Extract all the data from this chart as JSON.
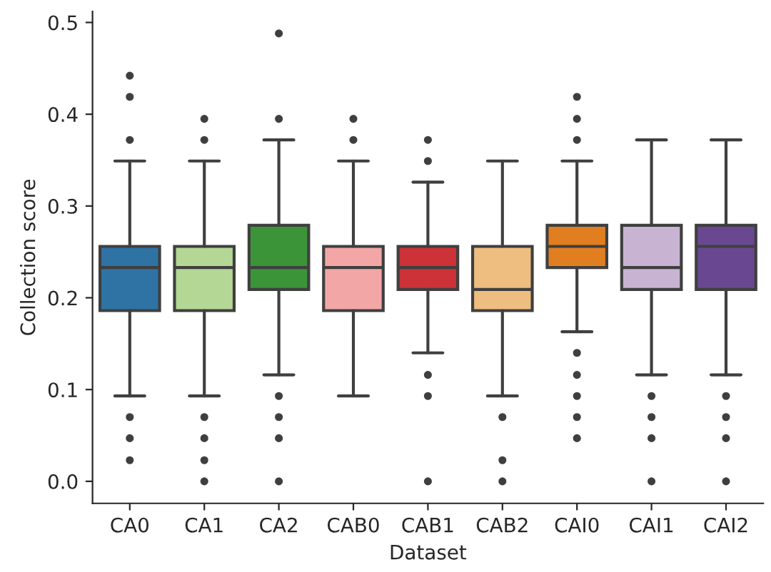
{
  "chart_data": {
    "type": "box",
    "xlabel": "Dataset",
    "ylabel": "Collection score",
    "categories": [
      "CA0",
      "CA1",
      "CA2",
      "CAB0",
      "CAB1",
      "CAB2",
      "CAI0",
      "CAI1",
      "CAI2"
    ],
    "colors": [
      "#2f73a4",
      "#b5d795",
      "#3b9538",
      "#f2a7a6",
      "#cc3237",
      "#eebe80",
      "#e17f20",
      "#c8b3d3",
      "#6a4891"
    ],
    "boxes": [
      {
        "low": 0.093,
        "q1": 0.186,
        "median": 0.233,
        "q3": 0.256,
        "high": 0.349,
        "outliers": [
          0.372,
          0.419,
          0.442,
          0.023,
          0.047,
          0.07
        ]
      },
      {
        "low": 0.093,
        "q1": 0.186,
        "median": 0.233,
        "q3": 0.256,
        "high": 0.349,
        "outliers": [
          0.372,
          0.395,
          0.0,
          0.023,
          0.047,
          0.07
        ]
      },
      {
        "low": 0.116,
        "q1": 0.209,
        "median": 0.233,
        "q3": 0.279,
        "high": 0.372,
        "outliers": [
          0.395,
          0.488,
          0.0,
          0.047,
          0.07,
          0.093
        ]
      },
      {
        "low": 0.093,
        "q1": 0.186,
        "median": 0.233,
        "q3": 0.256,
        "high": 0.349,
        "outliers": [
          0.372,
          0.395
        ]
      },
      {
        "low": 0.14,
        "q1": 0.209,
        "median": 0.233,
        "q3": 0.256,
        "high": 0.326,
        "outliers": [
          0.349,
          0.372,
          0.116,
          0.093,
          0.0
        ]
      },
      {
        "low": 0.093,
        "q1": 0.186,
        "median": 0.209,
        "q3": 0.256,
        "high": 0.349,
        "outliers": [
          0.07,
          0.023,
          0.0
        ]
      },
      {
        "low": 0.163,
        "q1": 0.233,
        "median": 0.256,
        "q3": 0.279,
        "high": 0.349,
        "outliers": [
          0.372,
          0.395,
          0.419,
          0.14,
          0.116,
          0.093,
          0.07,
          0.047
        ]
      },
      {
        "low": 0.116,
        "q1": 0.209,
        "median": 0.233,
        "q3": 0.279,
        "high": 0.372,
        "outliers": [
          0.093,
          0.07,
          0.047,
          0.0
        ]
      },
      {
        "low": 0.116,
        "q1": 0.209,
        "median": 0.256,
        "q3": 0.279,
        "high": 0.372,
        "outliers": [
          0.093,
          0.07,
          0.047,
          0.0
        ]
      }
    ],
    "ylim": [
      -0.024,
      0.512
    ],
    "yticks": [
      {
        "value": 0,
        "label": "0.0"
      },
      0.1,
      0.2,
      0.3,
      0.4,
      0.5
    ],
    "grid": false
  }
}
